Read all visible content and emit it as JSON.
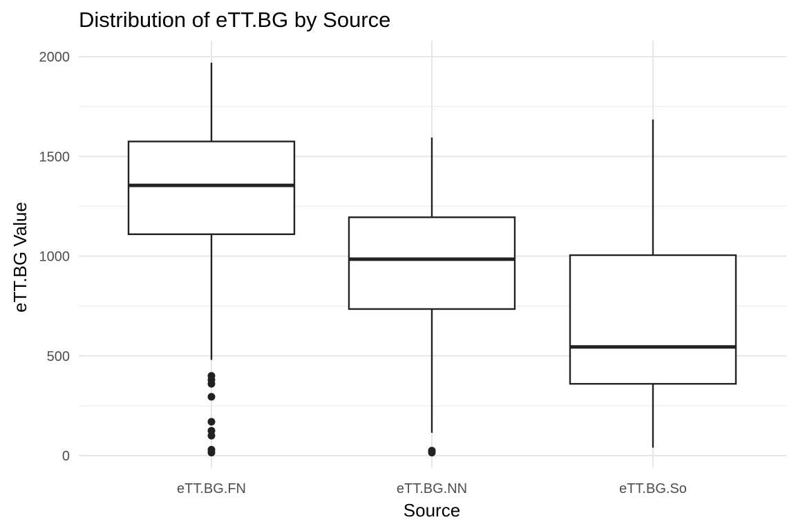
{
  "chart_data": {
    "type": "boxplot",
    "title": "Distribution of eTT.BG by Source",
    "xlabel": "Source",
    "ylabel": "eTT.BG Value",
    "ylim": [
      -60,
      2080
    ],
    "yticks": [
      0,
      500,
      1000,
      1500,
      2000
    ],
    "grid": true,
    "categories": [
      "eTT.BG.FN",
      "eTT.BG.NN",
      "eTT.BG.So"
    ],
    "boxes": [
      {
        "category": "eTT.BG.FN",
        "whisker_low": 480,
        "q1": 1110,
        "median": 1355,
        "q3": 1575,
        "whisker_high": 1970,
        "outliers": [
          400,
          380,
          360,
          295,
          170,
          125,
          100,
          30,
          15
        ]
      },
      {
        "category": "eTT.BG.NN",
        "whisker_low": 115,
        "q1": 735,
        "median": 985,
        "q3": 1195,
        "whisker_high": 1595,
        "outliers": [
          25,
          15
        ]
      },
      {
        "category": "eTT.BG.So",
        "whisker_low": 40,
        "q1": 360,
        "median": 545,
        "q3": 1005,
        "whisker_high": 1685,
        "outliers": []
      }
    ]
  }
}
